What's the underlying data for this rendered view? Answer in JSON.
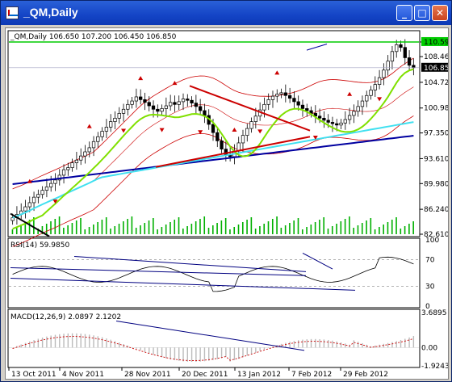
{
  "window": {
    "title": "_QM,Daily",
    "buttons": {
      "minimize": "_",
      "maximize": "□",
      "close": "✕"
    }
  },
  "main_panel": {
    "header": "_QM,Daily  106.650 107.200 106.450 106.850",
    "price_labels": [
      "110.592",
      "108.460",
      "104.720",
      "100.980",
      "97.350",
      "93.610",
      "89.980",
      "86.240",
      "82.610"
    ],
    "current_price": "106.850",
    "level_price": "110.592",
    "colors": {
      "up_marker": "#cc0000",
      "level_line": "#00cc00",
      "current_tag": "#000000",
      "ma_fast": "#80e000",
      "ma_mid": "#40e0f0",
      "ma_slow": "#0000a0",
      "bands": "#cc0000",
      "trend": "#cc0000",
      "volume": "#00b000"
    }
  },
  "rsi_panel": {
    "header": "RSI(14) 59.9850",
    "scale_labels": [
      "100",
      "70",
      "30",
      "0"
    ]
  },
  "macd_panel": {
    "header": "MACD(12,26,9) 2.0897 2.1202",
    "scale_labels": [
      "3.6895",
      "0.00",
      "-1.9243"
    ]
  },
  "x_axis": {
    "labels": [
      "13 Oct 2011",
      "4 Nov 2011",
      "28 Nov 2011",
      "20 Dec 2011",
      "13 Jan 2012",
      "7 Feb 2012",
      "29 Feb 2012"
    ]
  },
  "chart_data": {
    "type": "candlestick",
    "title": "_QM,Daily",
    "ohlc_last": {
      "open": 106.65,
      "high": 107.2,
      "low": 106.45,
      "close": 106.85
    },
    "y_range": [
      82.61,
      112.0
    ],
    "closes": [
      85,
      85.5,
      86,
      86.6,
      87.2,
      88,
      88.4,
      89,
      89.5,
      90,
      90.5,
      91.2,
      92,
      92.3,
      93,
      93.4,
      94,
      94.6,
      95.2,
      96.1,
      96.8,
      97.6,
      98.2,
      99,
      99.5,
      100.2,
      100.8,
      101.5,
      102,
      102.6,
      102.2,
      101.8,
      101.3,
      100.8,
      100.5,
      100.9,
      101.3,
      101.8,
      101.5,
      101.9,
      102.3,
      102.1,
      101.7,
      101.2,
      100.6,
      99.9,
      98.6,
      97.4,
      96.2,
      95,
      94.2,
      93.9,
      94.7,
      95.9,
      97,
      98,
      99,
      99.8,
      100.7,
      101.5,
      102.2,
      102.7,
      103,
      103.2,
      102.8,
      102.4,
      101.9,
      101.4,
      100.9,
      100.6,
      100.2,
      99.8,
      99.5,
      99.2,
      98.9,
      98.7,
      98.5,
      98.8,
      99.3,
      99.9,
      100.5,
      101.2,
      102,
      102.8,
      103.6,
      104.4,
      105.4,
      106.5,
      107.8,
      109.2,
      110.2,
      109.8,
      108.3,
      107.2,
      106.85
    ],
    "indicators": {
      "rsi": {
        "period": 14,
        "value": 59.985,
        "levels": [
          70,
          30
        ]
      },
      "macd": {
        "fast": 12,
        "slow": 26,
        "signal": 9,
        "value": 2.0897,
        "signal_value": 2.1202
      }
    }
  }
}
